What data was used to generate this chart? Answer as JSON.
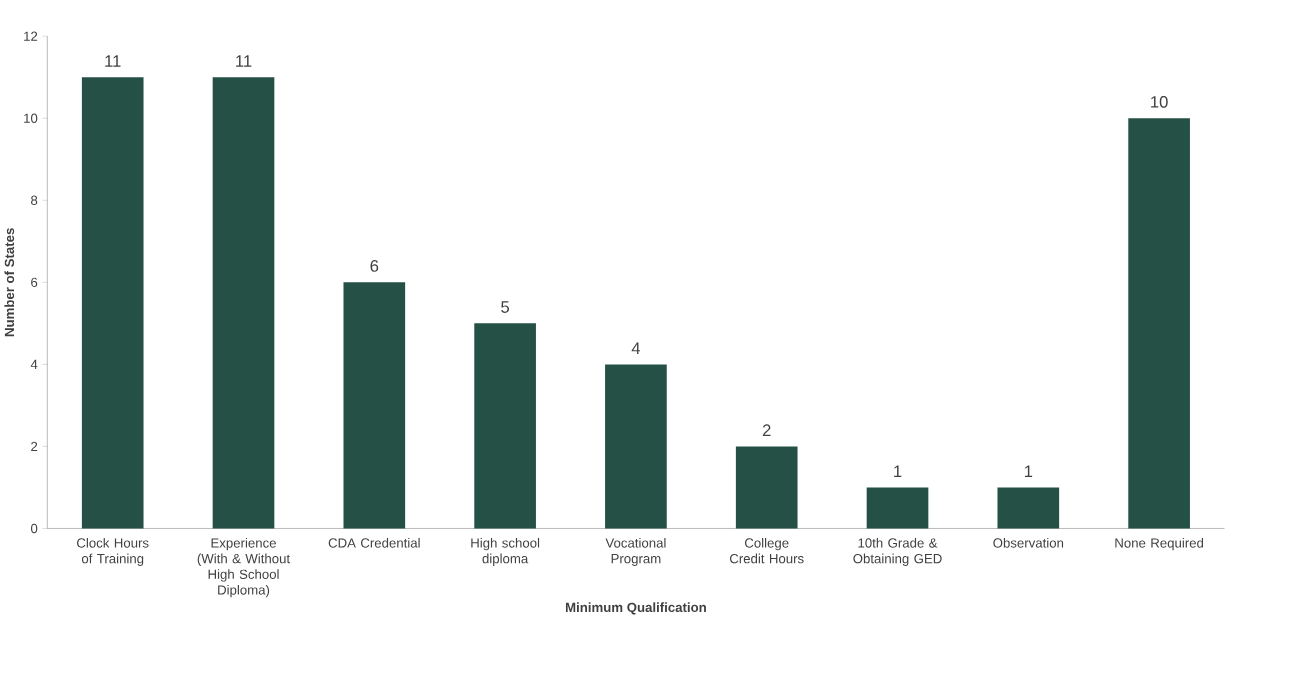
{
  "chart_data": {
    "type": "bar",
    "xlabel": "Minimum Qualification",
    "ylabel": "Number of States",
    "categories": [
      "Clock Hours of Training",
      "Experience (With & Without High School Diploma)",
      "CDA Credential",
      "High school diploma",
      "Vocational Program",
      "College Credit Hours",
      "10th Grade & Obtaining GED",
      "Observation",
      "None Required"
    ],
    "values": [
      11,
      11,
      6,
      5,
      4,
      2,
      1,
      1,
      10
    ],
    "color": "#255045",
    "ylim": [
      0,
      12
    ],
    "yticks": [
      0,
      2,
      4,
      6,
      8,
      10,
      12
    ],
    "data_labels": true,
    "grid": false
  }
}
